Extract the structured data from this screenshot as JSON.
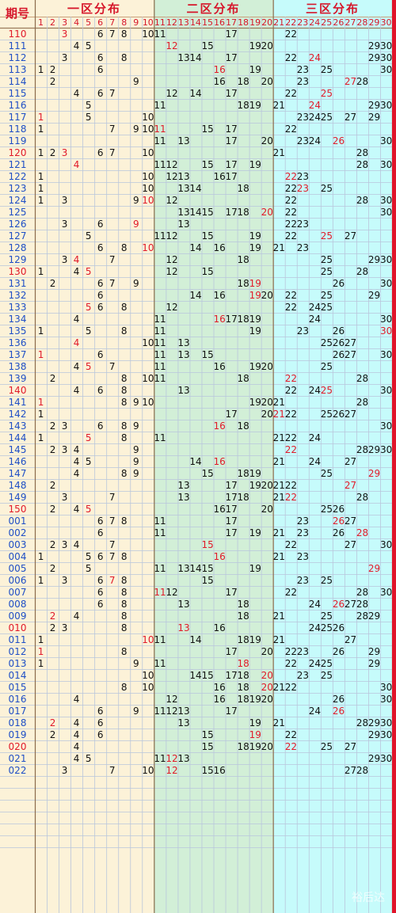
{
  "header": {
    "period_title": "期号",
    "zones": [
      "一区分布",
      "二区分布",
      "三区分布"
    ],
    "columns": [
      "1",
      "2",
      "3",
      "4",
      "5",
      "6",
      "7",
      "8",
      "9",
      "10",
      "11",
      "12",
      "13",
      "14",
      "15",
      "16",
      "17",
      "18",
      "19",
      "20",
      "21",
      "22",
      "23",
      "24",
      "25",
      "26",
      "27",
      "28",
      "29",
      "30"
    ]
  },
  "colors": {
    "number": "#111111",
    "hit": "#e11a2a",
    "period_red": "#e11a2a",
    "period_blue": "#1f4fc6",
    "zone1": "#fcf2d8",
    "zone2": "#d2efd7",
    "zone3": "#c6fbfb"
  },
  "rows": [
    {
      "period": "110",
      "numbers": [
        3,
        6,
        7,
        8,
        10,
        11,
        17,
        22
      ],
      "red": [
        3
      ]
    },
    {
      "period": "111",
      "numbers": [
        4,
        5,
        12,
        15,
        19,
        20,
        29,
        30
      ],
      "red": [
        12
      ]
    },
    {
      "period": "112",
      "numbers": [
        3,
        6,
        8,
        13,
        14,
        17,
        22,
        24,
        29,
        30
      ],
      "red": [
        24
      ]
    },
    {
      "period": "113",
      "numbers": [
        1,
        2,
        6,
        16,
        19,
        23,
        25,
        30
      ],
      "red": [
        16
      ]
    },
    {
      "period": "114",
      "numbers": [
        2,
        9,
        16,
        18,
        20,
        23,
        27,
        28
      ],
      "red": [
        27
      ]
    },
    {
      "period": "115",
      "numbers": [
        4,
        6,
        7,
        12,
        14,
        17,
        22,
        25
      ],
      "red": [
        25
      ]
    },
    {
      "period": "116",
      "numbers": [
        5,
        11,
        18,
        19,
        21,
        24,
        29,
        30
      ],
      "red": [
        24
      ]
    },
    {
      "period": "117",
      "numbers": [
        1,
        5,
        10,
        23,
        24,
        25,
        27,
        29
      ],
      "red": [
        1
      ]
    },
    {
      "period": "118",
      "numbers": [
        1,
        7,
        9,
        10,
        11,
        15,
        17,
        22
      ],
      "red": [
        11
      ]
    },
    {
      "period": "119",
      "numbers": [
        11,
        13,
        17,
        20,
        23,
        24,
        26,
        30
      ],
      "red": [
        26
      ]
    },
    {
      "period": "120",
      "numbers": [
        1,
        2,
        3,
        6,
        7,
        10,
        21,
        28
      ],
      "red": [
        3
      ]
    },
    {
      "period": "121",
      "numbers": [
        4,
        11,
        12,
        15,
        17,
        19,
        28,
        30
      ],
      "red": [
        4
      ]
    },
    {
      "period": "122",
      "numbers": [
        1,
        10,
        12,
        13,
        16,
        17,
        22,
        23
      ],
      "red": [
        22
      ]
    },
    {
      "period": "123",
      "numbers": [
        1,
        10,
        13,
        14,
        18,
        22,
        23,
        25
      ],
      "red": [
        23
      ]
    },
    {
      "period": "124",
      "numbers": [
        1,
        3,
        9,
        10,
        12,
        22,
        28,
        30
      ],
      "red": [
        10
      ]
    },
    {
      "period": "125",
      "numbers": [
        13,
        14,
        15,
        17,
        18,
        20,
        22,
        30
      ],
      "red": [
        20
      ]
    },
    {
      "period": "126",
      "numbers": [
        3,
        6,
        9,
        13,
        22,
        23
      ],
      "red": [
        9
      ]
    },
    {
      "period": "127",
      "numbers": [
        5,
        11,
        12,
        15,
        19,
        22,
        25,
        27
      ],
      "red": [
        25
      ]
    },
    {
      "period": "128",
      "numbers": [
        6,
        8,
        10,
        14,
        16,
        19,
        21,
        23
      ],
      "red": [
        10
      ]
    },
    {
      "period": "129",
      "numbers": [
        3,
        4,
        7,
        12,
        18,
        25,
        29,
        30
      ],
      "red": [
        4
      ]
    },
    {
      "period": "130",
      "numbers": [
        1,
        4,
        5,
        12,
        15,
        25,
        28
      ],
      "red": [
        5
      ]
    },
    {
      "period": "131",
      "numbers": [
        2,
        6,
        7,
        9,
        18,
        19,
        26,
        30
      ],
      "red": [
        19
      ]
    },
    {
      "period": "132",
      "numbers": [
        6,
        14,
        16,
        19,
        20,
        22,
        25,
        29
      ],
      "red": [
        19
      ]
    },
    {
      "period": "133",
      "numbers": [
        5,
        6,
        8,
        12,
        22,
        24,
        25
      ],
      "red": [
        5
      ]
    },
    {
      "period": "134",
      "numbers": [
        4,
        11,
        16,
        17,
        18,
        19,
        24,
        30
      ],
      "red": [
        16
      ]
    },
    {
      "period": "135",
      "numbers": [
        1,
        5,
        8,
        11,
        19,
        23,
        26,
        30
      ],
      "red": [
        30
      ]
    },
    {
      "period": "136",
      "numbers": [
        4,
        10,
        11,
        13,
        25,
        26,
        27
      ],
      "red": [
        4
      ]
    },
    {
      "period": "137",
      "numbers": [
        1,
        6,
        11,
        13,
        15,
        26,
        27,
        30
      ],
      "red": [
        1
      ]
    },
    {
      "period": "138",
      "numbers": [
        4,
        5,
        7,
        11,
        16,
        19,
        20,
        25
      ],
      "red": [
        5
      ]
    },
    {
      "period": "139",
      "numbers": [
        2,
        8,
        10,
        11,
        18,
        22,
        28
      ],
      "red": [
        22
      ]
    },
    {
      "period": "140",
      "numbers": [
        4,
        6,
        8,
        13,
        22,
        24,
        25,
        30
      ],
      "red": [
        25
      ]
    },
    {
      "period": "141",
      "numbers": [
        1,
        8,
        9,
        10,
        19,
        20,
        21,
        28
      ],
      "red": [
        1
      ]
    },
    {
      "period": "142",
      "numbers": [
        1,
        17,
        20,
        21,
        22,
        25,
        26,
        27
      ],
      "red": [
        21
      ]
    },
    {
      "period": "143",
      "numbers": [
        2,
        3,
        6,
        8,
        9,
        16,
        18,
        30
      ],
      "red": [
        16
      ]
    },
    {
      "period": "144",
      "numbers": [
        1,
        5,
        8,
        11,
        21,
        22,
        24
      ],
      "red": [
        5
      ]
    },
    {
      "period": "145",
      "numbers": [
        2,
        3,
        4,
        9,
        22,
        28,
        29,
        30
      ],
      "red": [
        22
      ]
    },
    {
      "period": "146",
      "numbers": [
        4,
        5,
        9,
        14,
        16,
        21,
        24,
        27
      ],
      "red": [
        16
      ]
    },
    {
      "period": "147",
      "numbers": [
        4,
        8,
        9,
        15,
        18,
        19,
        25,
        29
      ],
      "red": [
        29
      ]
    },
    {
      "period": "148",
      "numbers": [
        2,
        13,
        17,
        19,
        20,
        21,
        22,
        27
      ],
      "red": [
        27
      ]
    },
    {
      "period": "149",
      "numbers": [
        3,
        7,
        13,
        17,
        18,
        21,
        22,
        28
      ],
      "red": [
        22
      ]
    },
    {
      "period": "150",
      "numbers": [
        2,
        4,
        5,
        16,
        17,
        20,
        25,
        26
      ],
      "red": [
        5
      ]
    },
    {
      "period": "001",
      "numbers": [
        6,
        7,
        8,
        11,
        17,
        23,
        26,
        27
      ],
      "red": [
        26
      ]
    },
    {
      "period": "002",
      "numbers": [
        6,
        11,
        17,
        19,
        21,
        23,
        26,
        28
      ],
      "red": [
        28
      ]
    },
    {
      "period": "003",
      "numbers": [
        2,
        3,
        4,
        7,
        15,
        22,
        27,
        30
      ],
      "red": [
        15
      ]
    },
    {
      "period": "004",
      "numbers": [
        1,
        5,
        6,
        7,
        8,
        16,
        21,
        23
      ],
      "red": [
        16
      ]
    },
    {
      "period": "005",
      "numbers": [
        2,
        5,
        11,
        13,
        14,
        15,
        19,
        29
      ],
      "red": [
        29
      ]
    },
    {
      "period": "006",
      "numbers": [
        1,
        3,
        6,
        7,
        8,
        15,
        23,
        25
      ],
      "red": [
        7
      ]
    },
    {
      "period": "007",
      "numbers": [
        6,
        8,
        11,
        12,
        17,
        22,
        28,
        30
      ],
      "red": [
        11
      ]
    },
    {
      "period": "008",
      "numbers": [
        6,
        8,
        13,
        18,
        24,
        26,
        27,
        28
      ],
      "red": [
        26
      ]
    },
    {
      "period": "009",
      "numbers": [
        2,
        4,
        8,
        18,
        21,
        25,
        28,
        29
      ],
      "red": [
        2
      ]
    },
    {
      "period": "010",
      "numbers": [
        2,
        3,
        8,
        13,
        16,
        24,
        25,
        26
      ],
      "red": [
        13
      ]
    },
    {
      "period": "011",
      "numbers": [
        1,
        10,
        11,
        14,
        18,
        19,
        21,
        27
      ],
      "red": [
        10
      ]
    },
    {
      "period": "012",
      "numbers": [
        1,
        8,
        17,
        20,
        22,
        23,
        26,
        29
      ],
      "red": [
        1
      ]
    },
    {
      "period": "013",
      "numbers": [
        1,
        9,
        11,
        18,
        22,
        24,
        25,
        29
      ],
      "red": [
        18
      ]
    },
    {
      "period": "014",
      "numbers": [
        10,
        14,
        15,
        17,
        18,
        20,
        23,
        25
      ],
      "red": [
        20
      ]
    },
    {
      "period": "015",
      "numbers": [
        8,
        10,
        16,
        18,
        20,
        21,
        22,
        30
      ],
      "red": [
        20
      ]
    },
    {
      "period": "016",
      "numbers": [
        4,
        12,
        16,
        18,
        19,
        20,
        26,
        30
      ],
      "red": []
    },
    {
      "period": "017",
      "numbers": [
        6,
        9,
        11,
        12,
        13,
        17,
        24,
        26
      ],
      "red": [
        26
      ]
    },
    {
      "period": "018",
      "numbers": [
        2,
        4,
        6,
        13,
        19,
        21,
        28,
        29,
        30
      ],
      "red": [
        2
      ]
    },
    {
      "period": "019",
      "numbers": [
        2,
        4,
        6,
        15,
        19,
        22,
        29,
        30
      ],
      "red": [
        19
      ]
    },
    {
      "period": "020",
      "numbers": [
        4,
        15,
        18,
        19,
        20,
        22,
        25,
        27
      ],
      "red": [
        22
      ]
    },
    {
      "period": "021",
      "numbers": [
        4,
        5,
        11,
        12,
        13,
        29,
        30
      ],
      "red": [
        12
      ]
    },
    {
      "period": "022",
      "numbers": [
        3,
        7,
        10,
        12,
        15,
        16,
        27,
        28
      ],
      "red": [
        12
      ]
    }
  ],
  "watermark": "裕后达"
}
